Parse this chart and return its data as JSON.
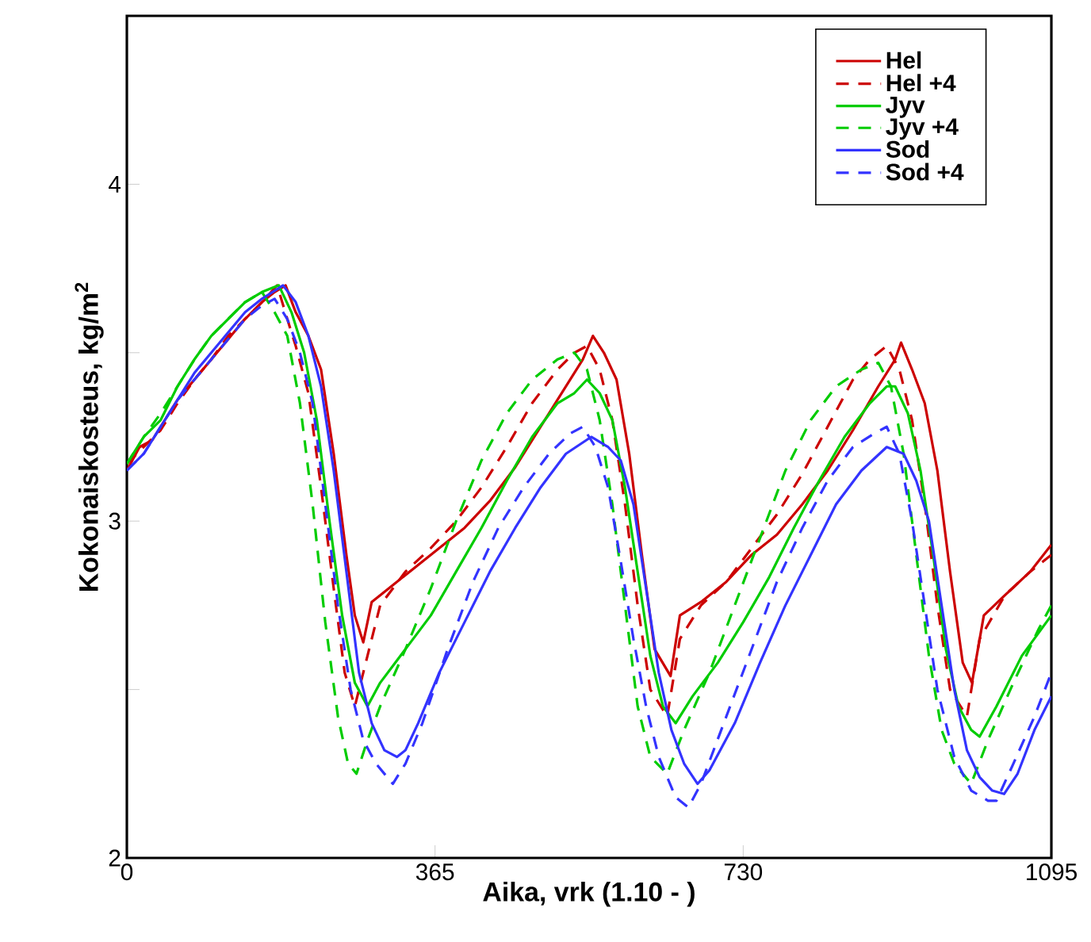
{
  "chart_data": {
    "type": "line",
    "xlabel": "Aika, vrk (1.10 - )",
    "ylabel": "Kokonaiskosteus, kg/m$^{2}$",
    "xlim": [
      0,
      1095
    ],
    "ylim": [
      2,
      4.5
    ],
    "xticks": [
      0,
      365,
      730,
      1095
    ],
    "yticks": [
      2,
      {
        "value": 2.5,
        "label": null
      },
      3,
      {
        "value": 3.5,
        "label": null
      },
      4
    ],
    "grid": false,
    "legend": "top right",
    "marker": "none",
    "series": [
      {
        "name": "Hel",
        "color": "#cc0000",
        "line_style": "solid",
        "x": [
          0,
          15,
          30,
          45,
          60,
          80,
          100,
          120,
          140,
          160,
          175,
          188,
          200,
          215,
          230,
          245,
          260,
          270,
          280,
          290,
          310,
          340,
          370,
          400,
          430,
          460,
          490,
          520,
          540,
          552,
          565,
          580,
          595,
          610,
          625,
          644,
          655,
          680,
          710,
          740,
          770,
          800,
          830,
          860,
          890,
          910,
          917,
          930,
          945,
          960,
          975,
          990,
          1001,
          1015,
          1040,
          1070,
          1095
        ],
        "values": [
          3.15,
          3.22,
          3.24,
          3.3,
          3.36,
          3.42,
          3.48,
          3.54,
          3.6,
          3.65,
          3.68,
          3.7,
          3.62,
          3.55,
          3.45,
          3.2,
          2.9,
          2.72,
          2.64,
          2.76,
          2.8,
          2.86,
          2.92,
          2.98,
          3.06,
          3.16,
          3.28,
          3.4,
          3.48,
          3.55,
          3.5,
          3.42,
          3.2,
          2.9,
          2.62,
          2.54,
          2.72,
          2.76,
          2.82,
          2.9,
          2.96,
          3.05,
          3.15,
          3.27,
          3.4,
          3.48,
          3.53,
          3.45,
          3.35,
          3.15,
          2.85,
          2.58,
          2.52,
          2.72,
          2.78,
          2.85,
          2.93
        ]
      },
      {
        "name": "Hel +4",
        "color": "#cc0000",
        "line_style": "dashed",
        "x": [
          0,
          20,
          40,
          60,
          80,
          100,
          120,
          140,
          160,
          178,
          190,
          200,
          215,
          230,
          245,
          258,
          270,
          285,
          300,
          330,
          360,
          390,
          420,
          450,
          480,
          510,
          530,
          545,
          560,
          575,
          590,
          605,
          620,
          640,
          655,
          680,
          710,
          740,
          770,
          800,
          830,
          860,
          880,
          900,
          915,
          930,
          945,
          960,
          975,
          995,
          1010,
          1040,
          1070,
          1095
        ],
        "values": [
          3.17,
          3.22,
          3.27,
          3.35,
          3.42,
          3.48,
          3.55,
          3.6,
          3.65,
          3.7,
          3.6,
          3.52,
          3.38,
          3.1,
          2.8,
          2.55,
          2.45,
          2.6,
          2.75,
          2.85,
          2.92,
          3.0,
          3.1,
          3.22,
          3.35,
          3.45,
          3.5,
          3.52,
          3.45,
          3.3,
          3.05,
          2.75,
          2.5,
          2.42,
          2.65,
          2.75,
          2.82,
          2.92,
          3.02,
          3.14,
          3.28,
          3.42,
          3.48,
          3.52,
          3.45,
          3.3,
          3.05,
          2.75,
          2.5,
          2.42,
          2.65,
          2.78,
          2.85,
          2.9
        ]
      },
      {
        "name": "Jyv",
        "color": "#00cc00",
        "line_style": "solid",
        "x": [
          0,
          20,
          40,
          60,
          80,
          100,
          120,
          140,
          160,
          180,
          195,
          210,
          225,
          240,
          255,
          270,
          285,
          300,
          330,
          360,
          390,
          420,
          450,
          480,
          510,
          530,
          545,
          560,
          575,
          590,
          605,
          620,
          635,
          650,
          670,
          700,
          730,
          760,
          790,
          820,
          850,
          880,
          900,
          910,
          925,
          940,
          955,
          970,
          985,
          1000,
          1010,
          1030,
          1060,
          1095
        ],
        "values": [
          3.17,
          3.25,
          3.3,
          3.4,
          3.48,
          3.55,
          3.6,
          3.65,
          3.68,
          3.7,
          3.62,
          3.5,
          3.3,
          3.0,
          2.72,
          2.52,
          2.45,
          2.52,
          2.62,
          2.72,
          2.85,
          2.98,
          3.12,
          3.25,
          3.35,
          3.38,
          3.42,
          3.38,
          3.3,
          3.1,
          2.85,
          2.6,
          2.45,
          2.4,
          2.48,
          2.58,
          2.7,
          2.83,
          2.98,
          3.12,
          3.25,
          3.35,
          3.4,
          3.4,
          3.32,
          3.15,
          2.9,
          2.62,
          2.45,
          2.38,
          2.36,
          2.45,
          2.6,
          2.72
        ]
      },
      {
        "name": "Jyv +4",
        "color": "#00cc00",
        "line_style": "dashed",
        "x": [
          0,
          20,
          40,
          60,
          80,
          100,
          120,
          140,
          160,
          175,
          190,
          205,
          220,
          235,
          250,
          262,
          272,
          285,
          300,
          330,
          360,
          390,
          420,
          450,
          480,
          510,
          530,
          545,
          560,
          575,
          590,
          605,
          620,
          640,
          660,
          690,
          720,
          750,
          780,
          810,
          840,
          870,
          890,
          905,
          920,
          935,
          950,
          965,
          980,
          1000,
          1020,
          1050,
          1080,
          1095
        ],
        "values": [
          3.17,
          3.25,
          3.32,
          3.4,
          3.48,
          3.55,
          3.6,
          3.65,
          3.68,
          3.62,
          3.55,
          3.35,
          3.05,
          2.7,
          2.42,
          2.28,
          2.25,
          2.35,
          2.45,
          2.62,
          2.8,
          3.0,
          3.18,
          3.32,
          3.42,
          3.48,
          3.5,
          3.45,
          3.3,
          3.05,
          2.75,
          2.45,
          2.3,
          2.25,
          2.38,
          2.55,
          2.75,
          2.95,
          3.15,
          3.3,
          3.4,
          3.45,
          3.47,
          3.4,
          3.2,
          2.9,
          2.6,
          2.38,
          2.28,
          2.22,
          2.35,
          2.52,
          2.68,
          2.75
        ]
      },
      {
        "name": "Sod",
        "color": "#3333ff",
        "line_style": "solid",
        "x": [
          0,
          20,
          40,
          60,
          80,
          100,
          120,
          140,
          160,
          185,
          200,
          215,
          230,
          245,
          260,
          275,
          290,
          305,
          320,
          330,
          345,
          370,
          400,
          430,
          460,
          490,
          520,
          550,
          570,
          585,
          600,
          615,
          630,
          645,
          660,
          676,
          690,
          720,
          750,
          780,
          810,
          840,
          870,
          900,
          920,
          935,
          950,
          965,
          980,
          995,
          1010,
          1025,
          1039,
          1055,
          1075,
          1095
        ],
        "values": [
          3.15,
          3.2,
          3.28,
          3.36,
          3.44,
          3.5,
          3.56,
          3.62,
          3.66,
          3.7,
          3.65,
          3.55,
          3.4,
          3.15,
          2.85,
          2.55,
          2.4,
          2.32,
          2.3,
          2.32,
          2.4,
          2.55,
          2.7,
          2.85,
          2.98,
          3.1,
          3.2,
          3.25,
          3.22,
          3.18,
          3.05,
          2.8,
          2.55,
          2.38,
          2.28,
          2.22,
          2.26,
          2.4,
          2.58,
          2.75,
          2.9,
          3.05,
          3.15,
          3.22,
          3.2,
          3.12,
          3.0,
          2.75,
          2.5,
          2.32,
          2.24,
          2.2,
          2.19,
          2.25,
          2.38,
          2.48
        ]
      },
      {
        "name": "Sod +4",
        "color": "#3333ff",
        "line_style": "dashed",
        "x": [
          0,
          20,
          40,
          60,
          80,
          100,
          120,
          140,
          160,
          175,
          190,
          205,
          220,
          235,
          250,
          265,
          280,
          295,
          315,
          330,
          350,
          380,
          410,
          440,
          470,
          500,
          525,
          540,
          555,
          570,
          585,
          600,
          615,
          630,
          650,
          665,
          680,
          710,
          740,
          770,
          800,
          830,
          860,
          885,
          900,
          915,
          930,
          945,
          960,
          980,
          1000,
          1020,
          1030,
          1050,
          1075,
          1095
        ],
        "values": [
          3.15,
          3.2,
          3.28,
          3.36,
          3.42,
          3.48,
          3.54,
          3.6,
          3.64,
          3.66,
          3.6,
          3.5,
          3.35,
          3.05,
          2.75,
          2.5,
          2.35,
          2.28,
          2.22,
          2.28,
          2.4,
          2.62,
          2.82,
          2.98,
          3.1,
          3.2,
          3.26,
          3.28,
          3.22,
          3.1,
          2.88,
          2.65,
          2.45,
          2.3,
          2.18,
          2.15,
          2.22,
          2.42,
          2.62,
          2.82,
          2.98,
          3.12,
          3.22,
          3.26,
          3.28,
          3.2,
          3.0,
          2.75,
          2.5,
          2.3,
          2.2,
          2.17,
          2.17,
          2.28,
          2.42,
          2.55
        ]
      }
    ]
  }
}
